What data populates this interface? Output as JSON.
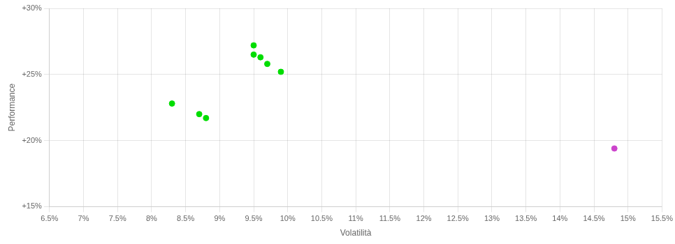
{
  "chart_data": {
    "type": "scatter",
    "xlabel": "Volatilità",
    "ylabel": "Performance",
    "xlim": [
      0.065,
      0.155
    ],
    "ylim": [
      0.15,
      0.3
    ],
    "xticks": [
      {
        "value": 0.065,
        "label": "6.5%"
      },
      {
        "value": 0.07,
        "label": "7%"
      },
      {
        "value": 0.075,
        "label": "7.5%"
      },
      {
        "value": 0.08,
        "label": "8%"
      },
      {
        "value": 0.085,
        "label": "8.5%"
      },
      {
        "value": 0.09,
        "label": "9%"
      },
      {
        "value": 0.095,
        "label": "9.5%"
      },
      {
        "value": 0.1,
        "label": "10%"
      },
      {
        "value": 0.105,
        "label": "10.5%"
      },
      {
        "value": 0.11,
        "label": "11%"
      },
      {
        "value": 0.115,
        "label": "11.5%"
      },
      {
        "value": 0.12,
        "label": "12%"
      },
      {
        "value": 0.125,
        "label": "12.5%"
      },
      {
        "value": 0.13,
        "label": "13%"
      },
      {
        "value": 0.135,
        "label": "13.5%"
      },
      {
        "value": 0.14,
        "label": "14%"
      },
      {
        "value": 0.145,
        "label": "14.5%"
      },
      {
        "value": 0.15,
        "label": "15%"
      },
      {
        "value": 0.155,
        "label": "15.5%"
      }
    ],
    "yticks": [
      {
        "value": 0.15,
        "label": "+15%"
      },
      {
        "value": 0.2,
        "label": "+20%"
      },
      {
        "value": 0.25,
        "label": "+25%"
      },
      {
        "value": 0.3,
        "label": "+30%"
      }
    ],
    "grid": true,
    "series": [
      {
        "color": "#00dd00",
        "x": [
          0.083,
          0.087,
          0.088,
          0.095,
          0.095,
          0.096,
          0.097,
          0.099
        ],
        "values": [
          0.228,
          0.22,
          0.217,
          0.272,
          0.265,
          0.263,
          0.258,
          0.252
        ]
      },
      {
        "color": "#cc44cc",
        "x": [
          0.148
        ],
        "values": [
          0.194
        ]
      }
    ]
  }
}
